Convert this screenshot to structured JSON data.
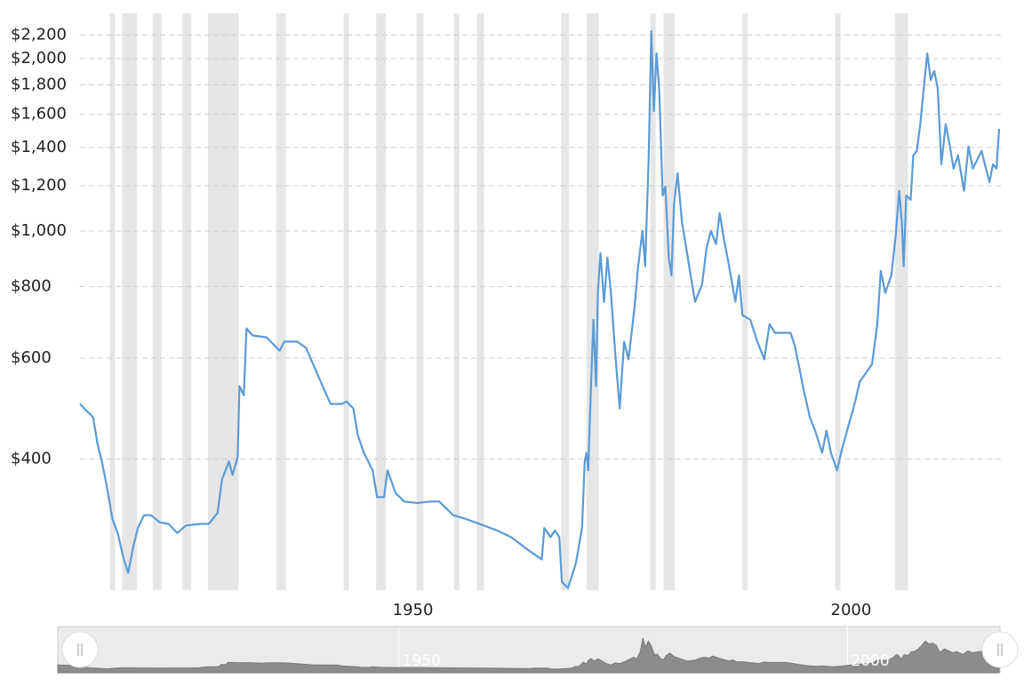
{
  "chart_data": {
    "type": "line",
    "log_scale": true,
    "grid": true,
    "xlim": [
      1912,
      2017
    ],
    "xticks": [
      1950,
      2000
    ],
    "ylim": [
      236,
      2400
    ],
    "yticks": [
      {
        "value": 400,
        "label": "$400"
      },
      {
        "value": 600,
        "label": "$600"
      },
      {
        "value": 800,
        "label": "$800"
      },
      {
        "value": 1000,
        "label": "$1,000"
      },
      {
        "value": 1200,
        "label": "$1,200"
      },
      {
        "value": 1400,
        "label": "$1,400"
      },
      {
        "value": 1600,
        "label": "$1,600"
      },
      {
        "value": 1800,
        "label": "$1,800"
      },
      {
        "value": 2000,
        "label": "$2,000"
      },
      {
        "value": 2200,
        "label": "$2,200"
      }
    ],
    "recession_color": "#e6e6e6",
    "recessions": [
      [
        1915.4,
        1916.0
      ],
      [
        1916.8,
        1918.5
      ],
      [
        1920.3,
        1921.3
      ],
      [
        1923.7,
        1924.7
      ],
      [
        1926.6,
        1930.1
      ],
      [
        1934.4,
        1935.5
      ],
      [
        1942.1,
        1942.7
      ],
      [
        1945.8,
        1946.9
      ],
      [
        1950.4,
        1951.2
      ],
      [
        1954.7,
        1955.3
      ],
      [
        1957.3,
        1958.1
      ],
      [
        1966.9,
        1967.8
      ],
      [
        1969.8,
        1971.2
      ],
      [
        1977.1,
        1977.7
      ],
      [
        1978.6,
        1979.9
      ],
      [
        1987.6,
        1988.2
      ],
      [
        1998.2,
        1998.8
      ],
      [
        2005.0,
        2006.5
      ]
    ],
    "x": [
      1912.0,
      1912.5,
      1913.5,
      1914.0,
      1914.5,
      1915.0,
      1915.7,
      1916.3,
      1917.0,
      1917.5,
      1918.1,
      1918.6,
      1919.3,
      1920.1,
      1921.1,
      1922.1,
      1923.1,
      1924.1,
      1925.7,
      1926.7,
      1927.7,
      1928.2,
      1929.0,
      1929.4,
      1930.0,
      1930.2,
      1930.7,
      1931.0,
      1931.7,
      1933.3,
      1934.8,
      1935.3,
      1936.8,
      1937.8,
      1938.8,
      1939.9,
      1940.6,
      1941.9,
      1942.4,
      1943.2,
      1943.7,
      1944.4,
      1945.4,
      1945.9,
      1946.7,
      1947.1,
      1948.0,
      1949.0,
      1950.5,
      1952.0,
      1953.0,
      1954.6,
      1956.1,
      1958.1,
      1959.6,
      1961.2,
      1963.2,
      1964.7,
      1965.0,
      1965.7,
      1966.2,
      1966.7,
      1967.0,
      1967.7,
      1968.6,
      1969.3,
      1969.6,
      1969.8,
      1970.0,
      1970.3,
      1970.6,
      1970.9,
      1971.1,
      1971.4,
      1971.8,
      1972.2,
      1972.6,
      1973.1,
      1973.6,
      1974.1,
      1974.6,
      1975.3,
      1975.7,
      1976.2,
      1976.5,
      1976.9,
      1977.2,
      1977.5,
      1977.8,
      1978.1,
      1978.5,
      1978.8,
      1979.2,
      1979.5,
      1979.8,
      1980.2,
      1980.7,
      1981.2,
      1981.7,
      1982.2,
      1983.0,
      1983.5,
      1984.0,
      1984.6,
      1985.0,
      1985.5,
      1986.0,
      1986.8,
      1987.2,
      1987.6,
      1988.5,
      1989.3,
      1990.1,
      1990.7,
      1991.3,
      1992.1,
      1993.1,
      1993.6,
      1994.1,
      1994.6,
      1995.3,
      1995.9,
      1996.7,
      1997.2,
      1997.7,
      1998.4,
      1999.0,
      1999.7,
      2000.4,
      2001.0,
      2001.7,
      2002.4,
      2003.0,
      2003.4,
      2003.9,
      2004.6,
      2005.1,
      2005.5,
      2005.8,
      2006.0,
      2006.3,
      2006.8,
      2007.1,
      2007.5,
      2007.9,
      2008.3,
      2008.7,
      2009.1,
      2009.5,
      2009.9,
      2010.3,
      2010.8,
      2011.2,
      2011.7,
      2012.2,
      2012.9,
      2013.4,
      2013.9,
      2014.4,
      2014.9,
      2015.4,
      2015.8,
      2016.2,
      2016.6,
      2016.9
    ],
    "series": [
      {
        "color": "#5a9bd6",
        "values": [
          499,
          490,
          473,
          425,
          396,
          362,
          314,
          297,
          267,
          253,
          282,
          303,
          319,
          319,
          310,
          308,
          297,
          306,
          308,
          308,
          322,
          368,
          396,
          375,
          403,
          536,
          517,
          676,
          657,
          652,
          618,
          641,
          641,
          625,
          576,
          527,
          499,
          499,
          504,
          490,
          440,
          410,
          382,
          343,
          343,
          382,
          349,
          337,
          335,
          337,
          337,
          319,
          314,
          306,
          300,
          292,
          277,
          267,
          303,
          292,
          300,
          292,
          244,
          238,
          263,
          303,
          396,
          410,
          382,
          527,
          700,
          536,
          780,
          915,
          752,
          899,
          780,
          607,
          490,
          641,
          597,
          739,
          868,
          1001,
          868,
          1332,
          2234,
          1620,
          2043,
          1772,
          1154,
          1196,
          899,
          837,
          1114,
          1262,
          1037,
          932,
          837,
          752,
          808,
          932,
          1001,
          949,
          1075,
          966,
          883,
          752,
          837,
          713,
          700,
          641,
          597,
          688,
          664,
          664,
          664,
          629,
          576,
          527,
          473,
          448,
          410,
          448,
          410,
          382,
          418,
          457,
          499,
          546,
          565,
          586,
          688,
          852,
          780,
          837,
          983,
          1175,
          1037,
          868,
          1154,
          1134,
          1356,
          1380,
          1536,
          1772,
          2043,
          1836,
          1903,
          1772,
          1308,
          1536,
          1430,
          1285,
          1356,
          1175,
          1405,
          1285,
          1332,
          1380,
          1285,
          1218,
          1308,
          1285,
          1509
        ]
      }
    ]
  }
}
